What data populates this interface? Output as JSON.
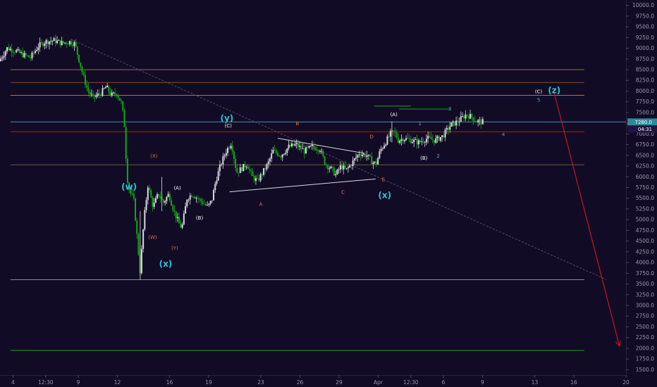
{
  "chart_data": {
    "type": "candlestick",
    "price_axis": {
      "min": 1375,
      "max": 10125,
      "ticks": [
        10000,
        9750,
        9500,
        9250,
        9000,
        8750,
        8500,
        8250,
        8000,
        7750,
        7500,
        7250,
        7000,
        6750,
        6500,
        6250,
        6000,
        5750,
        5500,
        5250,
        5000,
        4750,
        4500,
        4250,
        4000,
        3750,
        3500,
        3250,
        3000,
        2750,
        2500,
        2250,
        2000,
        1750,
        1500
      ],
      "tick_labels": [
        "10000.0",
        "9750.0",
        "9500.0",
        "9250.0",
        "9000.0",
        "8750.0",
        "8500.0",
        "8250.0",
        "8000.0",
        "7750.0",
        "7500.0",
        "7250.0",
        "7000.0",
        "6750.0",
        "6500.0",
        "6250.0",
        "6000.0",
        "5750.0",
        "5500.0",
        "5250.0",
        "5000.0",
        "4750.0",
        "4500.0",
        "4250.0",
        "4000.0",
        "3750.0",
        "3500.0",
        "3250.0",
        "3000.0",
        "2750.0",
        "2500.0",
        "2250.0",
        "2000.0",
        "1750.0",
        "1500.0"
      ]
    },
    "time_axis": {
      "min": 3.0,
      "max": 51.0,
      "ticks": [
        {
          "t": 4,
          "label": "4"
        },
        {
          "t": 6.5,
          "label": "12:30"
        },
        {
          "t": 9,
          "label": "9"
        },
        {
          "t": 12,
          "label": "12"
        },
        {
          "t": 16,
          "label": "16"
        },
        {
          "t": 19,
          "label": "19"
        },
        {
          "t": 23,
          "label": "23"
        },
        {
          "t": 26,
          "label": "26"
        },
        {
          "t": 29,
          "label": "29"
        },
        {
          "t": 32,
          "label": "Apr"
        },
        {
          "t": 34.5,
          "label": "12:30"
        },
        {
          "t": 37,
          "label": "6"
        },
        {
          "t": 40,
          "label": "9"
        },
        {
          "t": 44,
          "label": "13"
        },
        {
          "t": 47,
          "label": "16"
        },
        {
          "t": 51,
          "label": "20"
        }
      ]
    },
    "price_path": [
      [
        3.0,
        8700
      ],
      [
        3.6,
        9000
      ],
      [
        4.2,
        8950
      ],
      [
        4.8,
        8850
      ],
      [
        5.4,
        8780
      ],
      [
        6.0,
        9050
      ],
      [
        6.5,
        9150
      ],
      [
        7.2,
        9180
      ],
      [
        7.8,
        9120
      ],
      [
        8.4,
        9150
      ],
      [
        8.8,
        9100
      ],
      [
        9.1,
        8750
      ],
      [
        9.4,
        8400
      ],
      [
        9.8,
        8000
      ],
      [
        10.2,
        7850
      ],
      [
        10.8,
        7950
      ],
      [
        11.2,
        8100
      ],
      [
        11.6,
        7900
      ],
      [
        12.0,
        7950
      ],
      [
        12.4,
        7700
      ],
      [
        12.6,
        7200
      ],
      [
        12.8,
        6000
      ],
      [
        13.0,
        5650
      ],
      [
        13.3,
        5500
      ],
      [
        13.6,
        4500
      ],
      [
        13.8,
        3800
      ],
      [
        14.1,
        5000
      ],
      [
        14.4,
        5800
      ],
      [
        14.8,
        5300
      ],
      [
        15.2,
        5600
      ],
      [
        15.6,
        5400
      ],
      [
        16.0,
        5600
      ],
      [
        16.4,
        5200
      ],
      [
        16.8,
        4900
      ],
      [
        17.0,
        4800
      ],
      [
        17.4,
        5500
      ],
      [
        17.8,
        5600
      ],
      [
        18.2,
        5500
      ],
      [
        18.6,
        5400
      ],
      [
        19.0,
        5300
      ],
      [
        19.3,
        5450
      ],
      [
        19.6,
        5900
      ],
      [
        20.0,
        6300
      ],
      [
        20.4,
        6600
      ],
      [
        20.8,
        6800
      ],
      [
        21.2,
        6100
      ],
      [
        21.6,
        6200
      ],
      [
        22.0,
        6300
      ],
      [
        22.4,
        6000
      ],
      [
        22.8,
        5900
      ],
      [
        23.2,
        6100
      ],
      [
        23.6,
        6300
      ],
      [
        24.0,
        6600
      ],
      [
        24.6,
        6500
      ],
      [
        25.2,
        6700
      ],
      [
        25.8,
        6750
      ],
      [
        26.4,
        6600
      ],
      [
        27.0,
        6700
      ],
      [
        27.6,
        6650
      ],
      [
        28.0,
        6300
      ],
      [
        28.4,
        6200
      ],
      [
        28.8,
        6050
      ],
      [
        29.2,
        6250
      ],
      [
        29.6,
        6150
      ],
      [
        30.0,
        6300
      ],
      [
        30.6,
        6550
      ],
      [
        31.2,
        6500
      ],
      [
        31.6,
        6350
      ],
      [
        31.9,
        6300
      ],
      [
        32.2,
        6600
      ],
      [
        32.6,
        6800
      ],
      [
        33.0,
        7000
      ],
      [
        33.3,
        7050
      ],
      [
        33.6,
        6850
      ],
      [
        34.0,
        6900
      ],
      [
        34.6,
        6850
      ],
      [
        35.2,
        6800
      ],
      [
        35.8,
        6900
      ],
      [
        36.4,
        6850
      ],
      [
        37.0,
        6950
      ],
      [
        37.6,
        7200
      ],
      [
        38.2,
        7300
      ],
      [
        38.8,
        7450
      ],
      [
        39.2,
        7400
      ],
      [
        39.6,
        7300
      ],
      [
        40.0,
        7280
      ]
    ],
    "horizontal_levels": [
      {
        "price": 8500,
        "color": "#8a7433"
      },
      {
        "price": 8200,
        "color": "#8a4a30"
      },
      {
        "price": 7900,
        "color": "#c2740c"
      },
      {
        "price": 7280,
        "color": "#3a9aa8"
      },
      {
        "price": 7050,
        "color": "#b51a1a"
      },
      {
        "price": 6280,
        "color": "#6a5b3e"
      },
      {
        "price": 3600,
        "color": "#8a8a90"
      },
      {
        "price": 1950,
        "color": "#11a711"
      }
    ],
    "trend_lines": [
      {
        "from": [
          8.5,
          9200
        ],
        "to": [
          49.5,
          3600
        ],
        "color": "#4a4a5a",
        "dashed": true
      },
      {
        "from": [
          24.3,
          6900
        ],
        "to": [
          30.9,
          6550
        ],
        "color": "#d9d9e0",
        "dashed": false
      },
      {
        "from": [
          20.6,
          5650
        ],
        "to": [
          31.8,
          5950
        ],
        "color": "#d9d9e0",
        "dashed": false
      },
      {
        "from": [
          45.5,
          7950
        ],
        "to": [
          50.5,
          2050
        ],
        "color": "#c0171b",
        "dashed": false,
        "arrow": true
      }
    ],
    "wave_labels_small": [
      {
        "text": "(X)",
        "t": 14.8,
        "p": 6450,
        "color": "#e0703a"
      },
      {
        "text": "(W)",
        "t": 14.7,
        "p": 4550,
        "color": "#e0703a"
      },
      {
        "text": "(Y)",
        "t": 16.4,
        "p": 4300,
        "color": "#e0703a"
      },
      {
        "text": "(A)",
        "t": 16.6,
        "p": 5700,
        "color": "#ffffff"
      },
      {
        "text": "(B)",
        "t": 18.3,
        "p": 5000,
        "color": "#ffffff"
      },
      {
        "text": "(C)",
        "t": 20.5,
        "p": 7150,
        "color": "#ffffff"
      },
      {
        "text": "B",
        "t": 25.8,
        "p": 7200,
        "color": "#e0703a"
      },
      {
        "text": "A",
        "t": 23.0,
        "p": 5320,
        "color": "#e0703a"
      },
      {
        "text": "C",
        "t": 29.3,
        "p": 5600,
        "color": "#e0703a"
      },
      {
        "text": "D",
        "t": 31.5,
        "p": 6900,
        "color": "#e0703a"
      },
      {
        "text": "E",
        "t": 32.4,
        "p": 5900,
        "color": "#e0703a"
      },
      {
        "text": "(A)",
        "t": 33.2,
        "p": 7420,
        "color": "#ffffff"
      },
      {
        "text": "(B)",
        "t": 35.5,
        "p": 6400,
        "color": "#ffffff"
      },
      {
        "text": "(C)",
        "t": 44.3,
        "p": 7950,
        "color": "#ffffff"
      },
      {
        "text": "1",
        "t": 35.2,
        "p": 7200,
        "color": "#5aa8c8"
      },
      {
        "text": "2",
        "t": 36.6,
        "p": 6450,
        "color": "#5aa8c8"
      },
      {
        "text": "3",
        "t": 37.5,
        "p": 7550,
        "color": "#5aa8c8"
      },
      {
        "text": "4",
        "t": 41.6,
        "p": 6950,
        "color": "#5aa8c8"
      },
      {
        "text": "5",
        "t": 44.3,
        "p": 7750,
        "color": "#5aa8c8"
      }
    ],
    "wave_labels_big": [
      {
        "text": "(w)",
        "t": 12.9,
        "p": 5700,
        "color": "#2ec2d3"
      },
      {
        "text": "(x)",
        "t": 15.7,
        "p": 3900,
        "color": "#2ec2d3"
      },
      {
        "text": "(y)",
        "t": 20.4,
        "p": 7300,
        "color": "#2ec2d3"
      },
      {
        "text": "(x)",
        "t": 32.5,
        "p": 5500,
        "color": "#2ec2d3"
      },
      {
        "text": "(z)",
        "t": 45.5,
        "p": 7950,
        "color": "#2ec2d3"
      }
    ],
    "green_short_lines": [
      {
        "from": [
          31.7,
          7650
        ],
        "to": [
          34.5,
          7650
        ]
      },
      {
        "from": [
          33.6,
          7580
        ],
        "to": [
          37.5,
          7580
        ]
      }
    ],
    "current_price": {
      "value": "7280.0",
      "countdown": "04:31",
      "badge_color": "#2a8a98",
      "dark_badge_color": "#1f1540"
    }
  }
}
